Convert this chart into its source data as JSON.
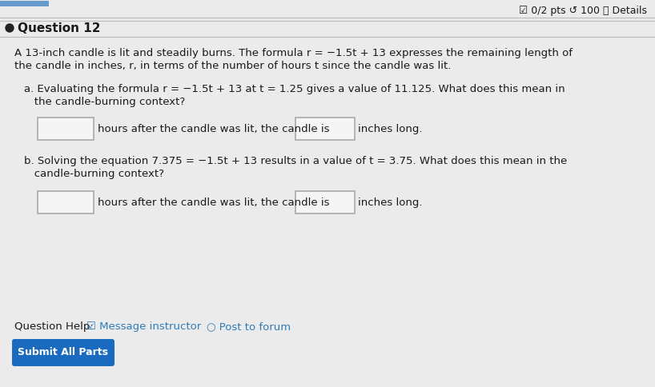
{
  "bg_color": "#ebebeb",
  "content_bg": "#ebebeb",
  "header_right": "☑ 0/2 pts ↺ 100 ⓘ Details",
  "question_label": "Question 12",
  "intro_line1": "A 13-inch candle is lit and steadily burns. The formula r = −1.5t + 13 expresses the remaining length of",
  "intro_line2": "the candle in inches, r, in terms of the number of hours t since the candle was lit.",
  "part_a_line1": "a. Evaluating the formula r = −1.5t + 13 at t = 1.25 gives a value of 11.125. What does this mean in",
  "part_a_line2": "   the candle-burning context?",
  "part_a_sentence": "hours after the candle was lit, the candle is",
  "part_a_end": "inches long.",
  "part_b_line1": "b. Solving the equation 7.375 = −1.5t + 13 results in a value of t = 3.75. What does this mean in the",
  "part_b_line2": "   candle-burning context?",
  "part_b_sentence": "hours after the candle was lit, the candle is",
  "part_b_end": "inches long.",
  "question_help_text": "Question Help:",
  "message_instructor": "☑ Message instructor",
  "post_to_forum": "○ Post to forum",
  "submit_button_text": "Submit All Parts",
  "submit_btn_color": "#1a6bbf",
  "submit_btn_text_color": "#ffffff",
  "link_color": "#2e7cb8",
  "text_color": "#1a1a1a",
  "box_border_color": "#aaaaaa",
  "box_fill_color": "#f5f5f5",
  "separator_color": "#bbbbbb",
  "bullet_color": "#222222",
  "font_size_main": 9.5,
  "font_size_header": 9.0,
  "font_size_question": 11.0
}
